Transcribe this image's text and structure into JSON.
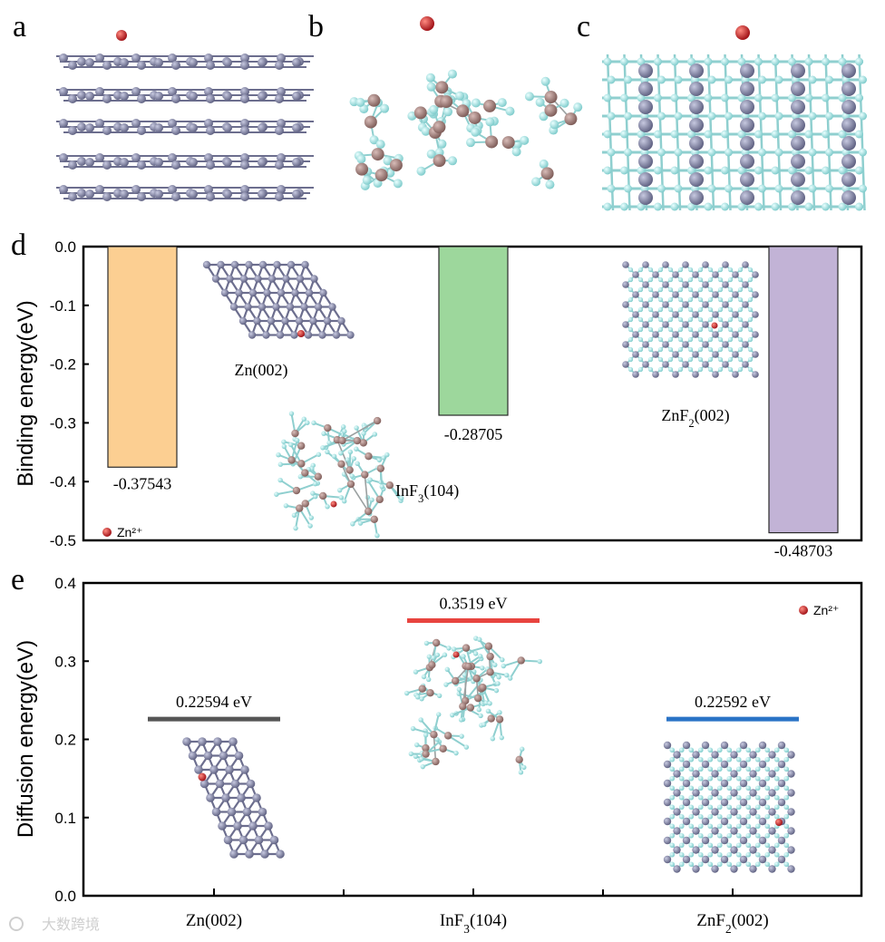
{
  "panels": {
    "a": "a",
    "b": "b",
    "c": "c",
    "d": "d",
    "e": "e"
  },
  "legend_label": "Zn²⁺",
  "watermark": "大数跨境",
  "colors": {
    "zn_atom": "#7d7f9e",
    "in_atom": "#9c7b78",
    "f_atom": "#a8e6e6",
    "zn_ion": "#c8161d"
  },
  "chart_data": [
    {
      "type": "bar",
      "panel": "d",
      "ylabel": "Binding energy(eV)",
      "ylim": [
        -0.5,
        0.0
      ],
      "yticks": [
        0.0,
        -0.1,
        -0.2,
        -0.3,
        -0.4,
        -0.5
      ],
      "ytick_labels": [
        "0.0",
        "-0.1",
        "-0.2",
        "-0.3",
        "-0.4",
        "-0.5"
      ],
      "categories": [
        "Zn(002)",
        "InF3(104)",
        "ZnF2(002)"
      ],
      "values": [
        -0.37543,
        -0.28705,
        -0.48703
      ],
      "value_labels": [
        "-0.37543",
        "-0.28705",
        "-0.48703"
      ],
      "colors": [
        "#fccf92",
        "#9dd79c",
        "#c2b3d6"
      ],
      "structure_labels": [
        {
          "main": "Zn(002)",
          "sub": "",
          "tail": ""
        },
        {
          "main": "InF",
          "sub": "3",
          "tail": "(104)"
        },
        {
          "main": "ZnF",
          "sub": "2",
          "tail": "(002)"
        }
      ]
    },
    {
      "type": "scatter",
      "panel": "e",
      "marker": "horizontal-line",
      "ylabel": "Diffusion energy(eV)",
      "ylim": [
        0.0,
        0.4
      ],
      "yticks": [
        0.0,
        0.1,
        0.2,
        0.3,
        0.4
      ],
      "ytick_labels": [
        "0.0",
        "0.1",
        "0.2",
        "0.3",
        "0.4"
      ],
      "categories": [
        "Zn(002)",
        "InF3(104)",
        "ZnF2(002)"
      ],
      "values": [
        0.22594,
        0.3519,
        0.22592
      ],
      "value_labels": [
        "0.22594 eV",
        "0.3519 eV",
        "0.22592 eV"
      ],
      "colors": [
        "#555555",
        "#e8443f",
        "#2a73c6"
      ],
      "xtick_labels": [
        {
          "main": "Zn(002)",
          "sub": "",
          "tail": ""
        },
        {
          "main": "InF",
          "sub": "3",
          "tail": "(104)"
        },
        {
          "main": "ZnF",
          "sub": "2",
          "tail": "(002)"
        }
      ]
    }
  ]
}
